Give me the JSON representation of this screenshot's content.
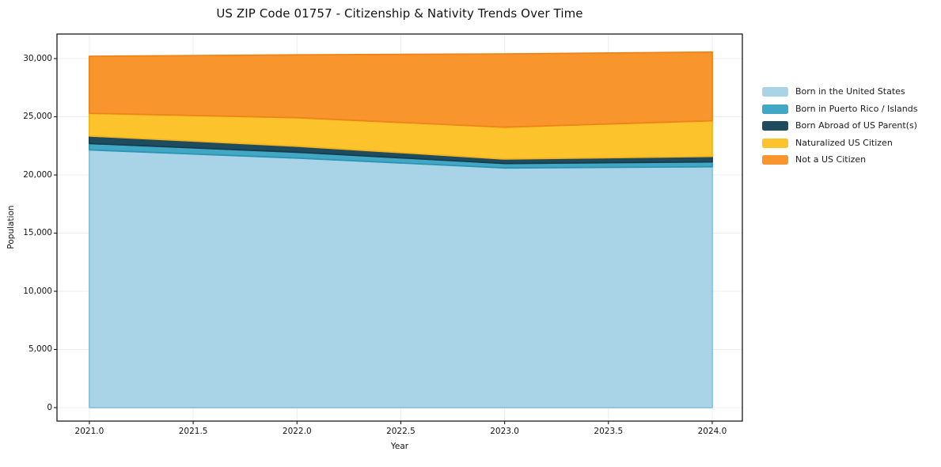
{
  "chart_data": {
    "type": "area",
    "stacked": true,
    "title": "US ZIP Code 01757 - Citizenship & Nativity Trends Over Time",
    "xlabel": "Year",
    "ylabel": "Population",
    "x": [
      2021,
      2022,
      2023,
      2024
    ],
    "series": [
      {
        "name": "Born in the United States",
        "color": "#A9D4E8",
        "edge": "#8AC3DD",
        "values": [
          22150,
          21450,
          20600,
          20700
        ]
      },
      {
        "name": "Born in Puerto Rico / Islands",
        "color": "#41A7C5",
        "edge": "#2D94B4",
        "values": [
          550,
          500,
          380,
          420
        ]
      },
      {
        "name": "Born Abroad of US Parent(s)",
        "color": "#1F4B5E",
        "edge": "#173D4D",
        "values": [
          650,
          520,
          390,
          470
        ]
      },
      {
        "name": "Naturalized US Citizen",
        "color": "#FCC32D",
        "edge": "#F3B31C",
        "values": [
          1950,
          2450,
          2730,
          3070
        ]
      },
      {
        "name": "Not a US Citizen",
        "color": "#F8962D",
        "edge": "#EF8318",
        "values": [
          4900,
          5400,
          6300,
          5900
        ]
      }
    ],
    "xlim": [
      2020.844,
      2024.145
    ],
    "ylim": [
      -1156,
      32110
    ],
    "x_ticks": [
      2021.0,
      2021.5,
      2022.0,
      2022.5,
      2023.0,
      2023.5,
      2024.0
    ],
    "x_tick_labels": [
      "2021.0",
      "2021.5",
      "2022.0",
      "2022.5",
      "2023.0",
      "2023.5",
      "2024.0"
    ],
    "y_ticks": [
      0,
      5000,
      10000,
      15000,
      20000,
      25000,
      30000
    ],
    "y_tick_labels": [
      "0",
      "5,000",
      "10,000",
      "15,000",
      "20,000",
      "25,000",
      "30,000"
    ],
    "grid": true,
    "grid_color": "#ededed",
    "frame_color": "#1a1a1a",
    "legend_position": "right"
  }
}
